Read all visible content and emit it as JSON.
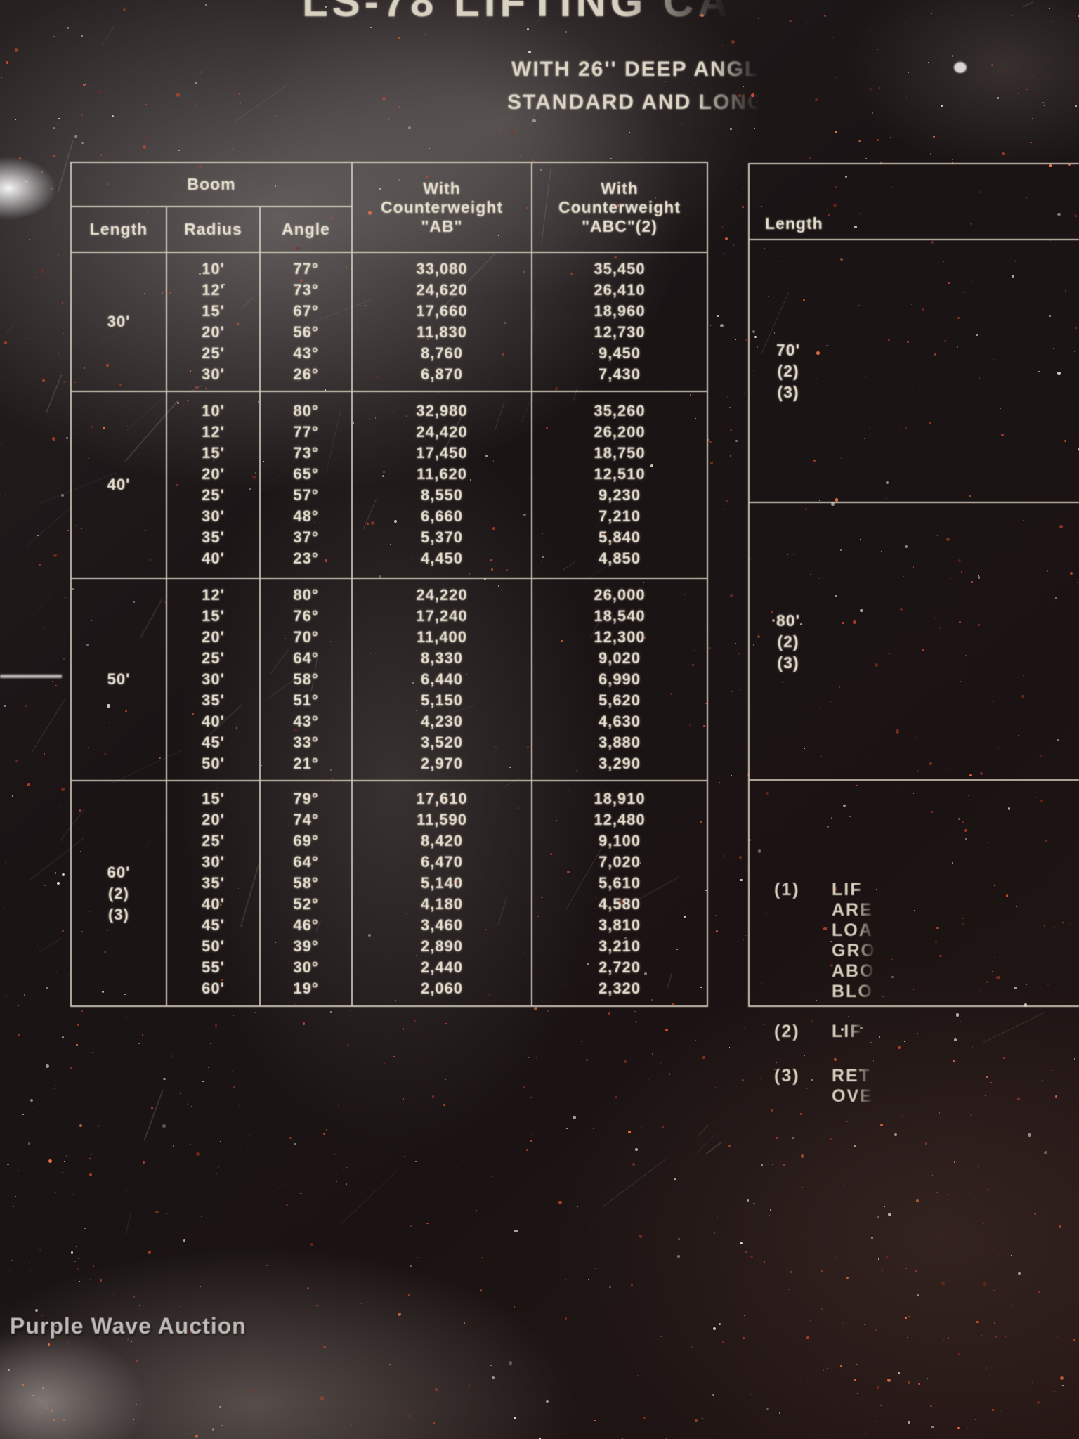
{
  "palette": {
    "plate_black": "#1a1415",
    "line_cream": "#ddd6c4",
    "text_cream": "#e8e1d1",
    "speckle_orange": "#d14a28",
    "speckle_dark_red": "#8e2b16",
    "speckle_bright": "#ff7a46",
    "speckle_white": "#e9e5de",
    "speckle_gray": "#b9b2a9",
    "watermark_gray": "#cecac6"
  },
  "plate": {
    "title_fragment": "LS-78 LIFTING CA",
    "subtitle_line1": "WITH 26'' DEEP ANGL",
    "subtitle_line2": "STANDARD AND LONG"
  },
  "main_table": {
    "headers": {
      "boom": "Boom",
      "length": "Length",
      "radius": "Radius",
      "angle": "Angle",
      "with_ab": "With\nCounterweight\n\"AB\"",
      "with_abc": "With\nCounterweight\n\"ABC\"(2)"
    },
    "blocks": [
      {
        "length": "30'",
        "rows": [
          [
            "10'",
            "77°",
            "33,080",
            "35,450"
          ],
          [
            "12'",
            "73°",
            "24,620",
            "26,410"
          ],
          [
            "15'",
            "67°",
            "17,660",
            "18,960"
          ],
          [
            "20'",
            "56°",
            "11,830",
            "12,730"
          ],
          [
            "25'",
            "43°",
            "8,760",
            "9,450"
          ],
          [
            "30'",
            "26°",
            "6,870",
            "7,430"
          ]
        ]
      },
      {
        "length": "40'",
        "rows": [
          [
            "10'",
            "80°",
            "32,980",
            "35,260"
          ],
          [
            "12'",
            "77°",
            "24,420",
            "26,200"
          ],
          [
            "15'",
            "73°",
            "17,450",
            "18,750"
          ],
          [
            "20'",
            "65°",
            "11,620",
            "12,510"
          ],
          [
            "25'",
            "57°",
            "8,550",
            "9,230"
          ],
          [
            "30'",
            "48°",
            "6,660",
            "7,210"
          ],
          [
            "35'",
            "37°",
            "5,370",
            "5,840"
          ],
          [
            "40'",
            "23°",
            "4,450",
            "4,850"
          ]
        ]
      },
      {
        "length": "50'",
        "rows": [
          [
            "12'",
            "80°",
            "24,220",
            "26,000"
          ],
          [
            "15'",
            "76°",
            "17,240",
            "18,540"
          ],
          [
            "20'",
            "70°",
            "11,400",
            "12,300"
          ],
          [
            "25'",
            "64°",
            "8,330",
            "9,020"
          ],
          [
            "30'",
            "58°",
            "6,440",
            "6,990"
          ],
          [
            "35'",
            "51°",
            "5,150",
            "5,620"
          ],
          [
            "40'",
            "43°",
            "4,230",
            "4,630"
          ],
          [
            "45'",
            "33°",
            "3,520",
            "3,880"
          ],
          [
            "50'",
            "21°",
            "2,970",
            "3,290"
          ]
        ]
      },
      {
        "length": "60'\n(2)\n(3)",
        "rows": [
          [
            "15'",
            "79°",
            "17,610",
            "18,910"
          ],
          [
            "20'",
            "74°",
            "11,590",
            "12,480"
          ],
          [
            "25'",
            "69°",
            "8,420",
            "9,100"
          ],
          [
            "30'",
            "64°",
            "6,470",
            "7,020"
          ],
          [
            "35'",
            "58°",
            "5,140",
            "5,610"
          ],
          [
            "40'",
            "52°",
            "4,180",
            "4,580"
          ],
          [
            "45'",
            "46°",
            "3,460",
            "3,810"
          ],
          [
            "50'",
            "39°",
            "2,890",
            "3,210"
          ],
          [
            "55'",
            "30°",
            "2,440",
            "2,720"
          ],
          [
            "60'",
            "19°",
            "2,060",
            "2,320"
          ]
        ]
      }
    ]
  },
  "right_table": {
    "header": "Length",
    "rows": [
      "70'\n(2)\n(3)",
      "80'\n(2)\n(3)"
    ]
  },
  "notes": [
    {
      "label": "(1)",
      "lines": [
        "LIF",
        "ARE",
        "LOA",
        "GRO",
        "ABO",
        "BLO"
      ]
    },
    {
      "label": "(2)",
      "lines": [
        "LIF"
      ]
    },
    {
      "label": "(3)",
      "lines": [
        "RET",
        "OVE"
      ]
    }
  ],
  "watermark": "Purple Wave Auction"
}
